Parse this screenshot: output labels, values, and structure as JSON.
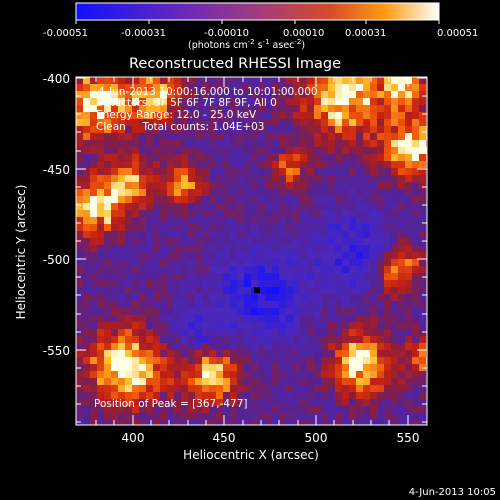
{
  "colorbar": {
    "tick_labels": [
      "-0.00051",
      "-0.00031",
      "-0.00010",
      "0.00010",
      "0.00031",
      "0.00051"
    ],
    "unit_label": "(photons cm",
    "unit_exp1": "-2",
    "unit_mid": " s",
    "unit_exp2": "-1",
    "unit_mid2": " asec",
    "unit_exp3": "-2",
    "unit_end": ")",
    "gradient_colors": [
      "#1010ff",
      "#6a2ab8",
      "#a23b7e",
      "#d84a2a",
      "#ff9a10",
      "#ffffff"
    ]
  },
  "plot": {
    "title": "Reconstructed RHESSI Image",
    "info_lines": [
      "4-Jun-2013 10:00:16.000 to 10:01:00.000",
      "Detectors: 3F 5F 6F 7F 8F 9F, All 0",
      "Energy Range: 12.0 - 25.0 keV",
      "Clean     Total counts: 1.04E+03"
    ],
    "peak_label": "Position of Peak = [367,-477]",
    "xlabel": "Heliocentric X (arcsec)",
    "ylabel": "Heliocentric Y (arcsec)",
    "x_ticks": [
      "400",
      "450",
      "500",
      "550"
    ],
    "y_ticks": [
      "-400",
      "-450",
      "-500",
      "-550"
    ],
    "x_range": [
      367,
      561
    ],
    "y_range": [
      -590,
      -396
    ]
  },
  "footer": {
    "timestamp": "4-Jun-2013 10:05"
  }
}
